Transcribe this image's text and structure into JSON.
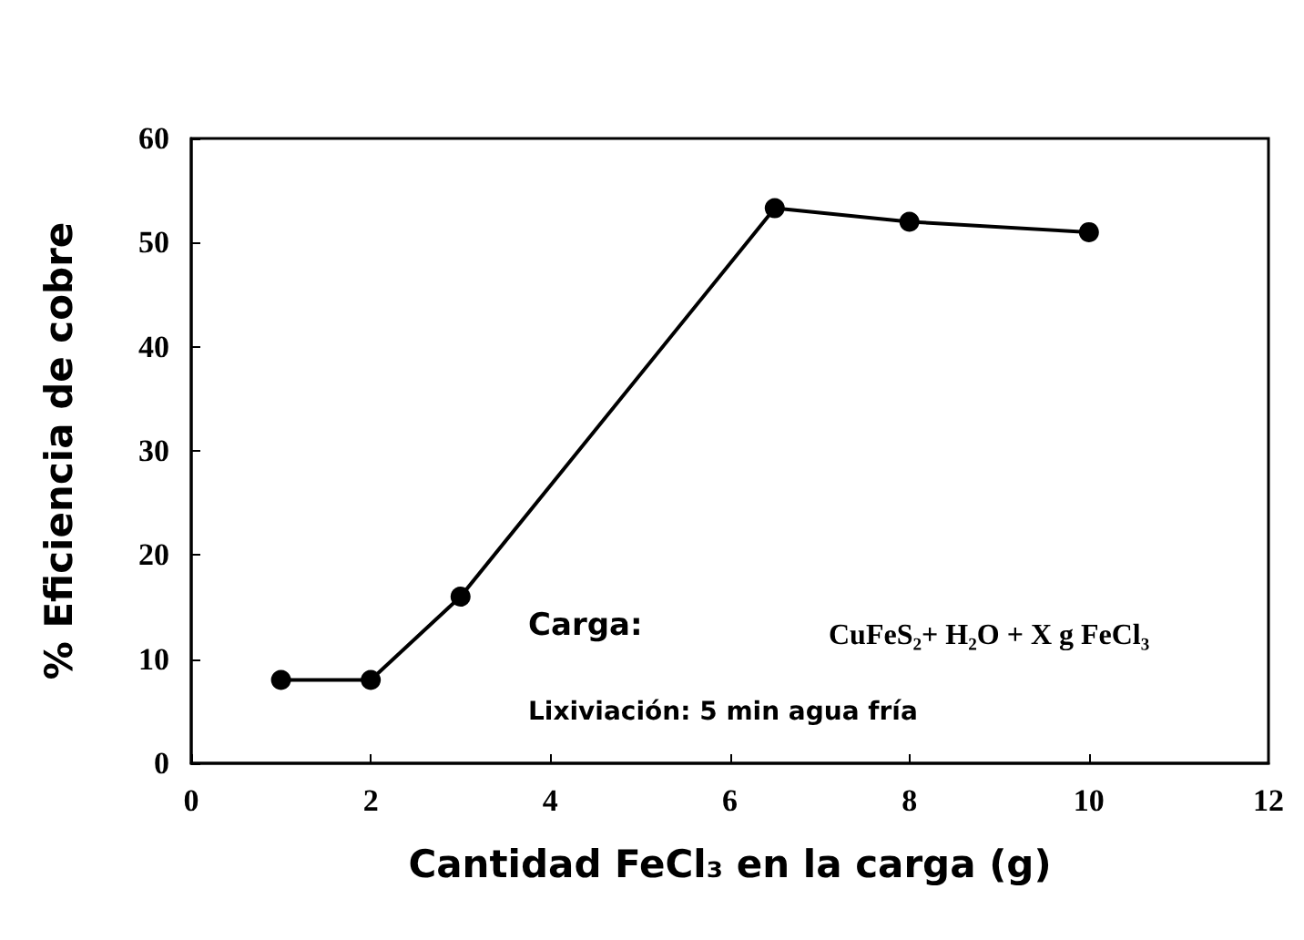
{
  "chart_data": {
    "type": "line",
    "xlabel": "Cantidad FeCl₃ en la carga (g)",
    "ylabel": "% Eficiencia de cobre",
    "x": [
      1,
      2,
      3,
      6.5,
      8,
      10
    ],
    "series": [
      {
        "color": "#000000",
        "values": [
          8,
          8,
          16,
          53.3,
          52,
          51
        ]
      }
    ],
    "xlim": [
      0,
      12
    ],
    "xticks": [
      0,
      2,
      4,
      6,
      8,
      10,
      12
    ],
    "ylim": [
      0,
      60
    ],
    "yticks": [
      0,
      10,
      20,
      30,
      40,
      50,
      60
    ],
    "grid": false,
    "marker": "circle",
    "line_style": "solid",
    "annotations": [
      "Carga:",
      "CuFeS₂+ H₂O + X g FeCl₃",
      "Lixiviación: 5 min agua fría"
    ]
  }
}
